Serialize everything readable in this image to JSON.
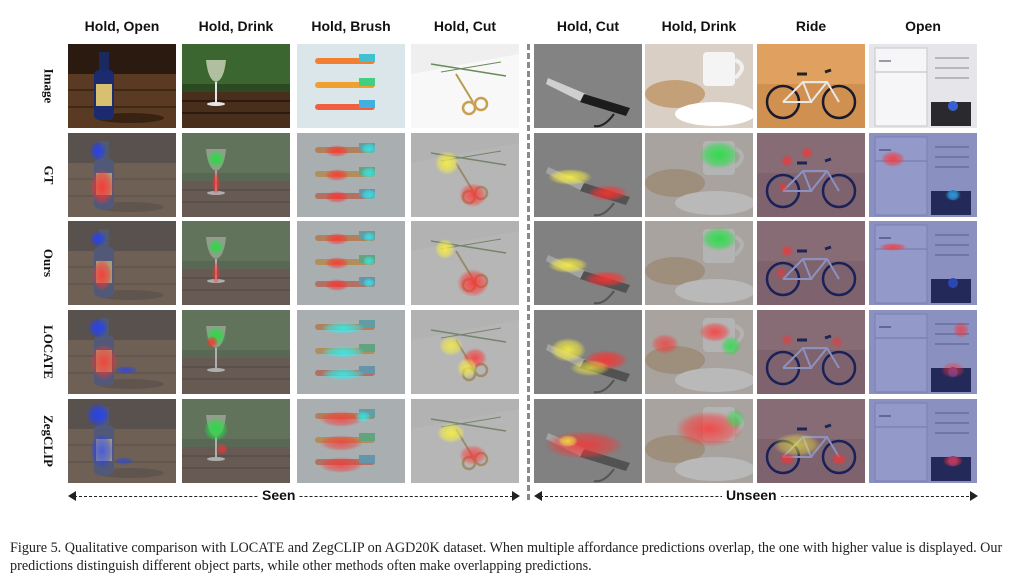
{
  "columns": [
    "Hold, Open",
    "Hold, Drink",
    "Hold, Brush",
    "Hold, Cut",
    "Hold, Cut",
    "Hold, Drink",
    "Ride",
    "Open"
  ],
  "rows": [
    "Image",
    "GT",
    "Ours",
    "LOCATE",
    "ZegCLIP"
  ],
  "splits": {
    "seen": "Seen",
    "unseen": "Unseen"
  },
  "caption": "Figure 5. Qualitative comparison with LOCATE and ZegCLIP on AGD20K dataset. When multiple affordance predictions overlap, the one with higher value is displayed. Our predictions distinguish different object parts, while other methods often make overlapping predictions.",
  "colors": {
    "red": "#ff3030",
    "green": "#20e040",
    "cyan": "#30f0f0",
    "yellow": "#f8f040",
    "blue": "#2040ff",
    "divider": "#8a8a8a"
  }
}
